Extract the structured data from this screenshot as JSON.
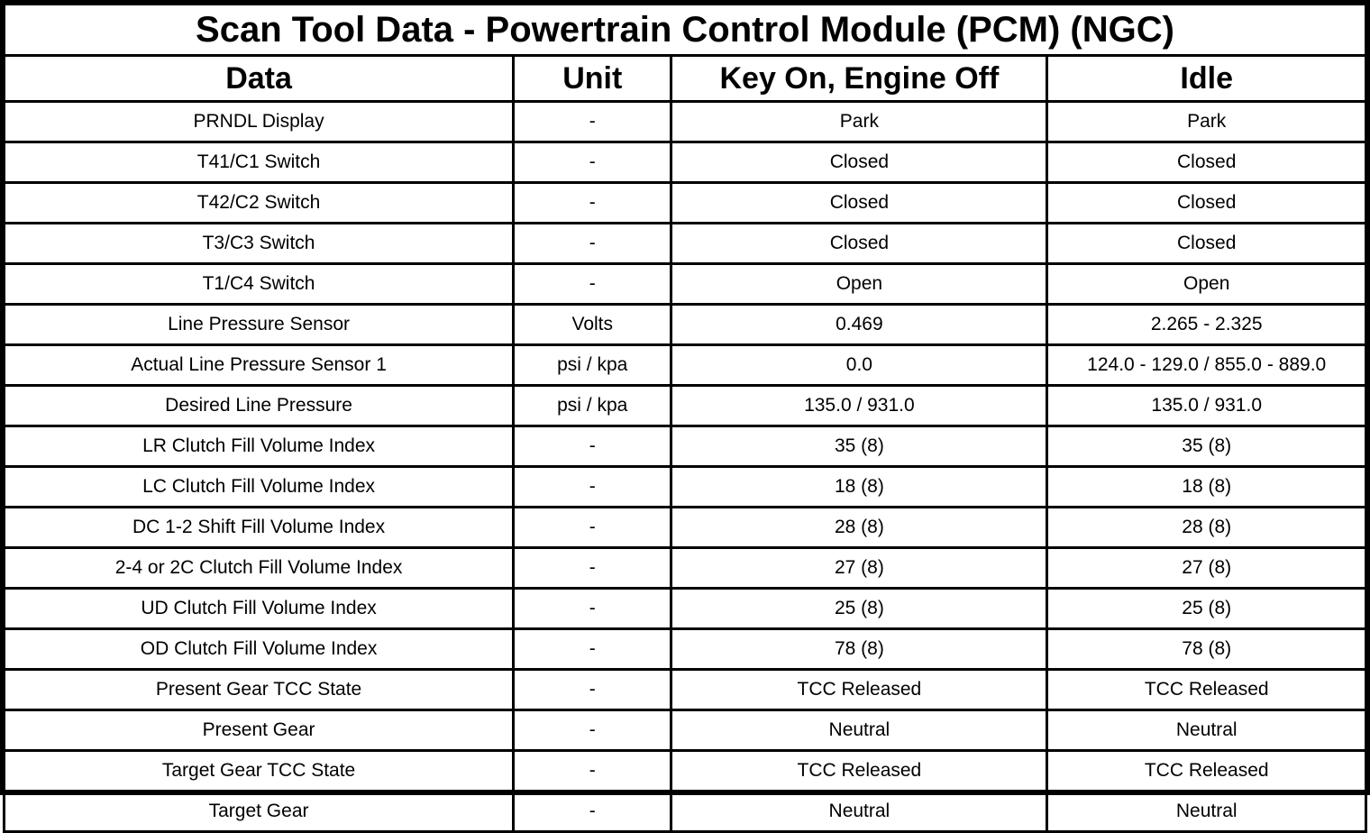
{
  "title": "Scan Tool Data - Powertrain Control Module (PCM) (NGC)",
  "table": {
    "columns": [
      "Data",
      "Unit",
      "Key On, Engine Off",
      "Idle"
    ],
    "rows": [
      [
        "PRNDL Display",
        "-",
        "Park",
        "Park"
      ],
      [
        "T41/C1 Switch",
        "-",
        "Closed",
        "Closed"
      ],
      [
        "T42/C2 Switch",
        "-",
        "Closed",
        "Closed"
      ],
      [
        "T3/C3 Switch",
        "-",
        "Closed",
        "Closed"
      ],
      [
        "T1/C4 Switch",
        "-",
        "Open",
        "Open"
      ],
      [
        "Line Pressure Sensor",
        "Volts",
        "0.469",
        "2.265 - 2.325"
      ],
      [
        "Actual Line Pressure Sensor 1",
        "psi / kpa",
        "0.0",
        "124.0 - 129.0 / 855.0 - 889.0"
      ],
      [
        "Desired Line Pressure",
        "psi / kpa",
        "135.0 / 931.0",
        "135.0 / 931.0"
      ],
      [
        "LR Clutch Fill Volume Index",
        "-",
        "35 (8)",
        "35 (8)"
      ],
      [
        "LC Clutch Fill Volume Index",
        "-",
        "18 (8)",
        "18 (8)"
      ],
      [
        "DC 1-2 Shift Fill Volume Index",
        "-",
        "28 (8)",
        "28 (8)"
      ],
      [
        "2-4 or 2C Clutch Fill Volume Index",
        "-",
        "27 (8)",
        "27 (8)"
      ],
      [
        "UD Clutch Fill Volume Index",
        "-",
        "25 (8)",
        "25 (8)"
      ],
      [
        "OD Clutch Fill Volume Index",
        "-",
        "78 (8)",
        "78 (8)"
      ],
      [
        "Present Gear TCC State",
        "-",
        "TCC Released",
        "TCC Released"
      ],
      [
        "Present Gear",
        "-",
        "Neutral",
        "Neutral"
      ],
      [
        "Target Gear TCC State",
        "-",
        "TCC Released",
        "TCC Released"
      ],
      [
        "Target Gear",
        "-",
        "Neutral",
        "Neutral"
      ]
    ]
  },
  "chart_data": {
    "type": "table",
    "title": "Scan Tool Data - Powertrain Control Module (PCM) (NGC)",
    "columns": [
      "Data",
      "Unit",
      "Key On, Engine Off",
      "Idle"
    ],
    "rows": [
      [
        "PRNDL Display",
        "-",
        "Park",
        "Park"
      ],
      [
        "T41/C1 Switch",
        "-",
        "Closed",
        "Closed"
      ],
      [
        "T42/C2 Switch",
        "-",
        "Closed",
        "Closed"
      ],
      [
        "T3/C3 Switch",
        "-",
        "Closed",
        "Closed"
      ],
      [
        "T1/C4 Switch",
        "-",
        "Open",
        "Open"
      ],
      [
        "Line Pressure Sensor",
        "Volts",
        "0.469",
        "2.265 - 2.325"
      ],
      [
        "Actual Line Pressure Sensor 1",
        "psi / kpa",
        "0.0",
        "124.0 - 129.0 / 855.0 - 889.0"
      ],
      [
        "Desired Line Pressure",
        "psi / kpa",
        "135.0 / 931.0",
        "135.0 / 931.0"
      ],
      [
        "LR Clutch Fill Volume Index",
        "-",
        "35 (8)",
        "35 (8)"
      ],
      [
        "LC Clutch Fill Volume Index",
        "-",
        "18 (8)",
        "18 (8)"
      ],
      [
        "DC 1-2 Shift Fill Volume Index",
        "-",
        "28 (8)",
        "28 (8)"
      ],
      [
        "2-4 or 2C Clutch Fill Volume Index",
        "-",
        "27 (8)",
        "27 (8)"
      ],
      [
        "UD Clutch Fill Volume Index",
        "-",
        "25 (8)",
        "25 (8)"
      ],
      [
        "OD Clutch Fill Volume Index",
        "-",
        "78 (8)",
        "78 (8)"
      ],
      [
        "Present Gear TCC State",
        "-",
        "TCC Released",
        "TCC Released"
      ],
      [
        "Present Gear",
        "-",
        "Neutral",
        "Neutral"
      ],
      [
        "Target Gear TCC State",
        "-",
        "TCC Released",
        "TCC Released"
      ],
      [
        "Target Gear",
        "-",
        "Neutral",
        "Neutral"
      ]
    ]
  }
}
